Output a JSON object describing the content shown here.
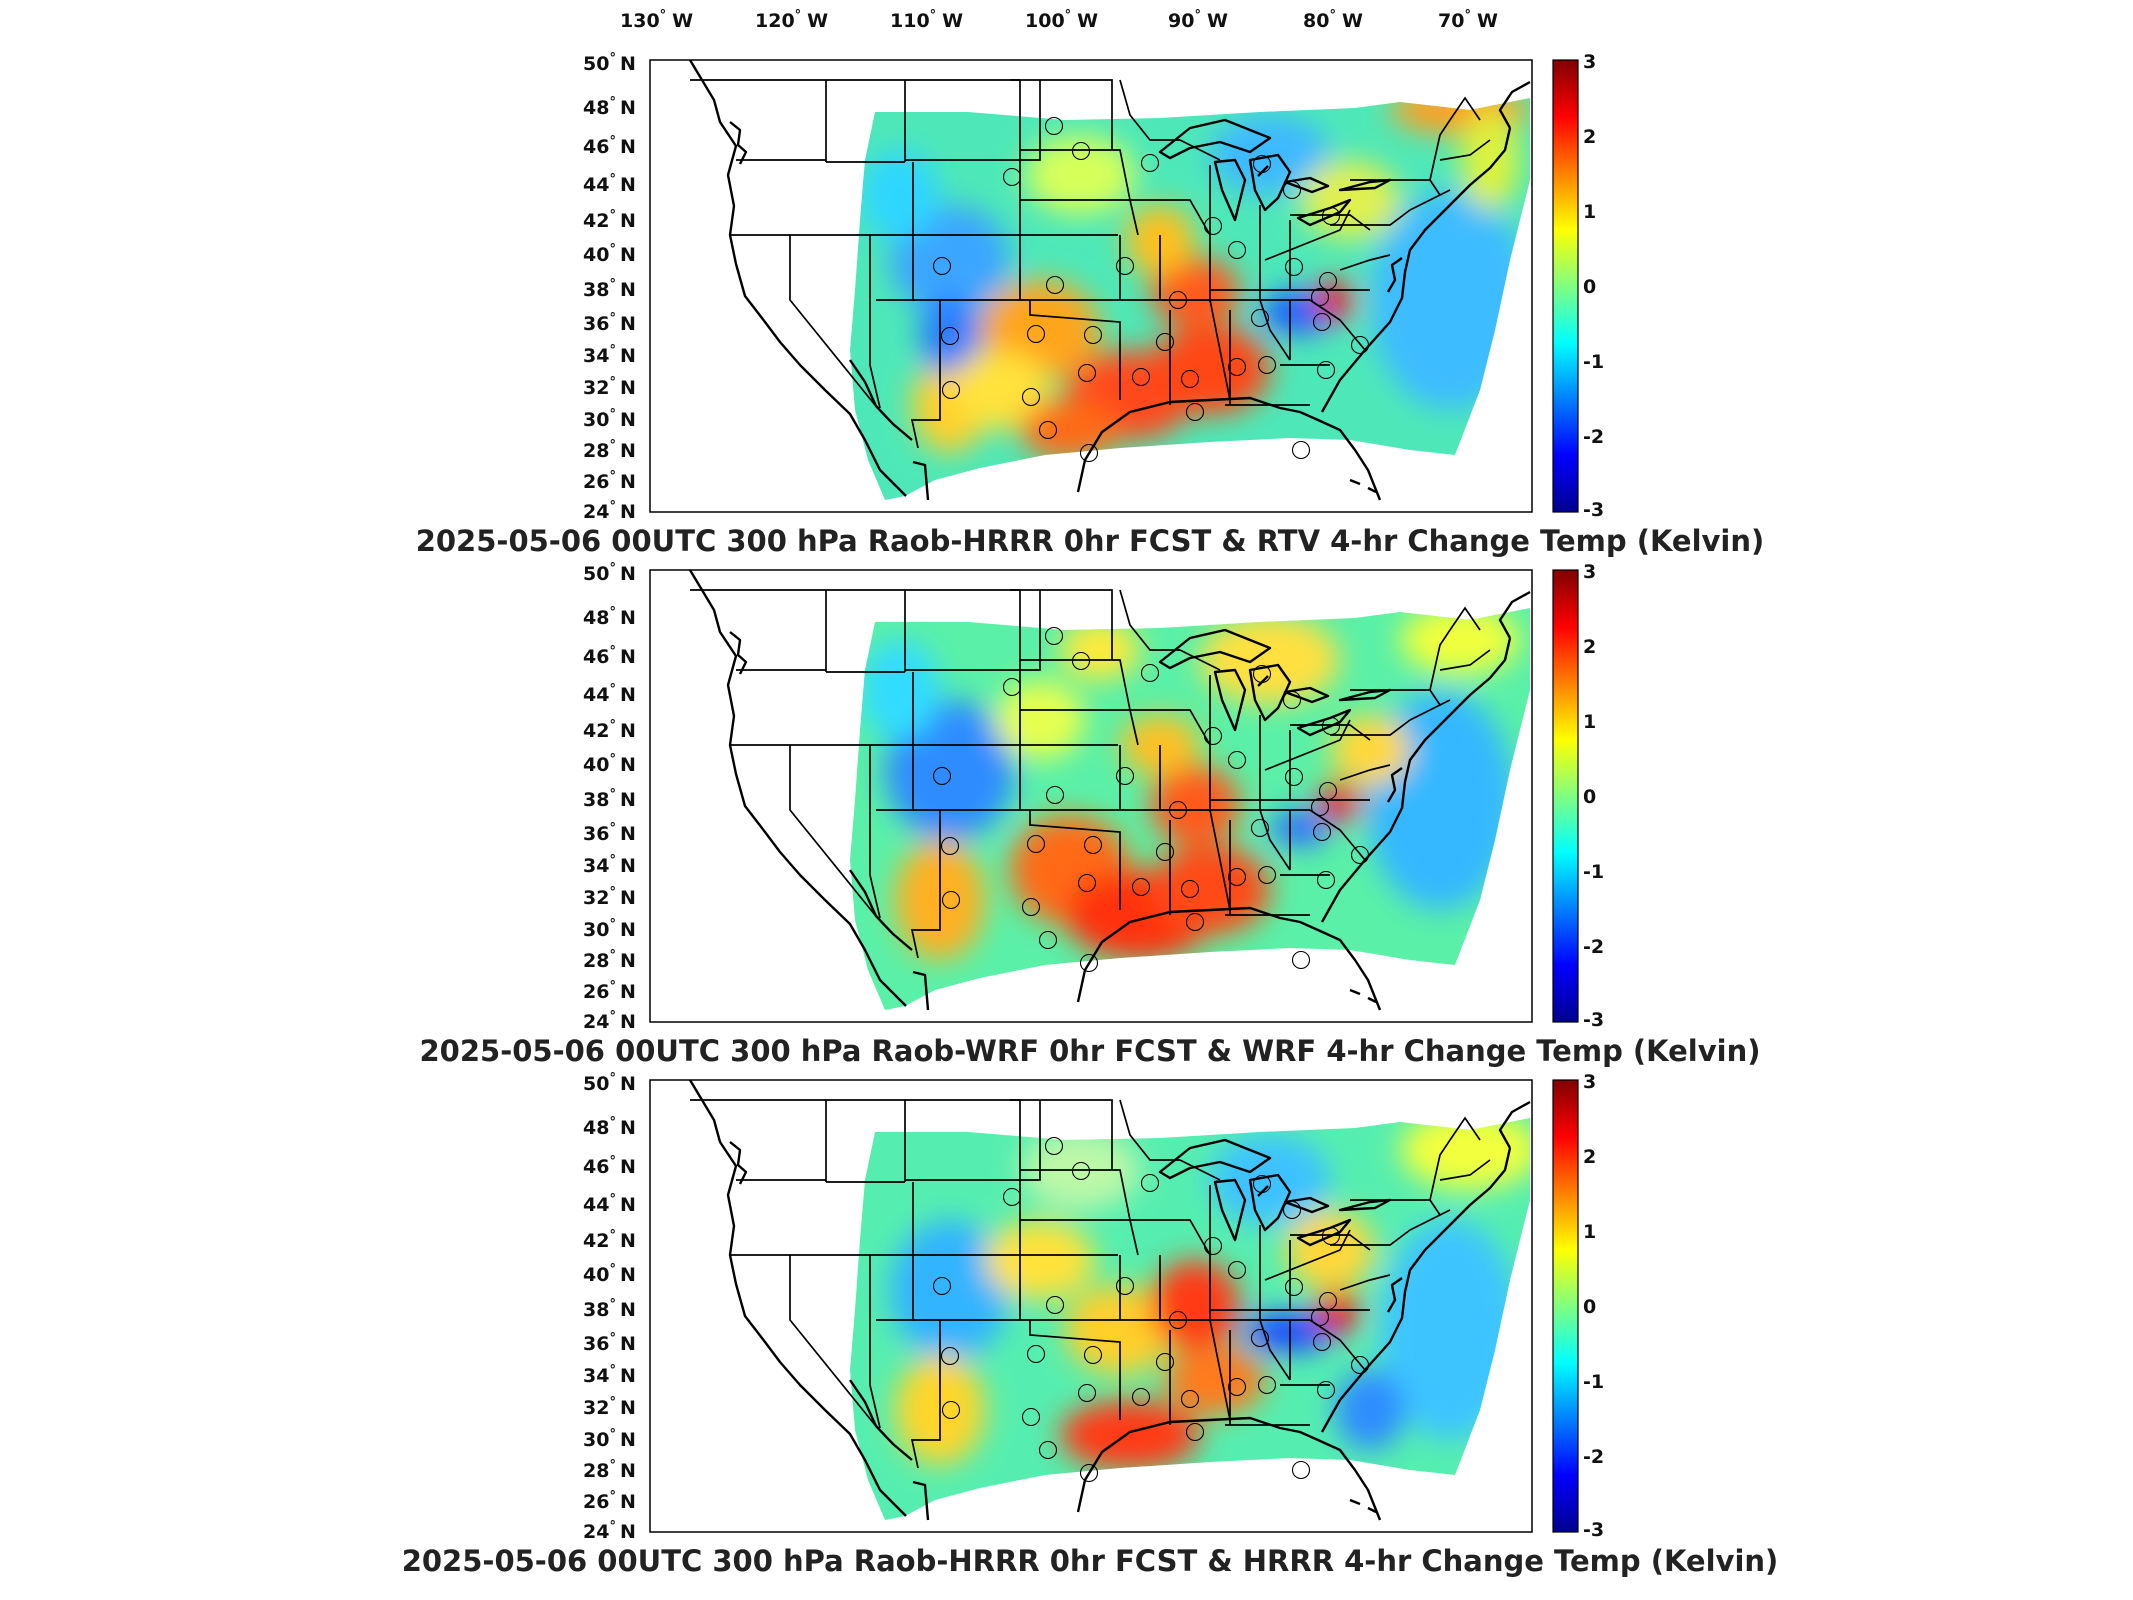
{
  "lon_labels": [
    "130",
    "120",
    "110",
    "100",
    "90",
    "80",
    "70"
  ],
  "lon_suffix": "W",
  "lat_labels": [
    "50",
    "48",
    "46",
    "44",
    "42",
    "40",
    "38",
    "36",
    "34",
    "32",
    "30",
    "28",
    "26",
    "24"
  ],
  "lat_suffix": "N",
  "degree_symbol": "°",
  "colorbar": {
    "ticks": [
      "3",
      "2",
      "1",
      "0",
      "-1",
      "-2",
      "-3"
    ],
    "range": [
      -3,
      3
    ],
    "colormap": "jet",
    "colors": [
      "#00008f",
      "#0000ff",
      "#0080ff",
      "#00ffff",
      "#80ff80",
      "#ffff00",
      "#ff8000",
      "#ff0000",
      "#800000"
    ]
  },
  "panels": [
    {
      "title": "2025-05-06 00UTC 300 hPa Raob-HRRR 0hr FCST & RTV 4-hr Change Temp (Kelvin)"
    },
    {
      "title": "2025-05-06 00UTC 300 hPa Raob-WRF 0hr FCST & WRF 4-hr Change Temp (Kelvin)"
    },
    {
      "title": "2025-05-06 00UTC 300 hPa Raob-HRRR 0hr FCST & HRRR 4-hr Change Temp (Kelvin)"
    }
  ]
}
